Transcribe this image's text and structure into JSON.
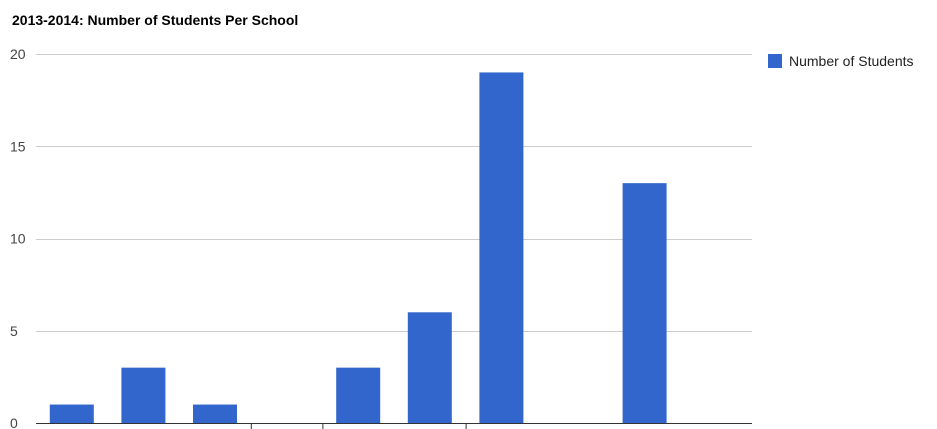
{
  "chart_data": {
    "type": "bar",
    "title": "2013-2014: Number of Students Per School",
    "categories": [
      "",
      "",
      "",
      "",
      "",
      "",
      "",
      "",
      "",
      ""
    ],
    "series": [
      {
        "name": "Number of Students",
        "values": [
          1,
          3,
          1,
          0,
          3,
          6,
          19,
          0,
          13,
          0
        ]
      }
    ],
    "ylim": [
      0,
      20
    ],
    "yticks": [
      0,
      5,
      10,
      15,
      20
    ],
    "grid": true,
    "legend_position": "right",
    "colors": {
      "bar": "#3366cc",
      "grid": "#cccccc",
      "axis": "#333333"
    }
  }
}
